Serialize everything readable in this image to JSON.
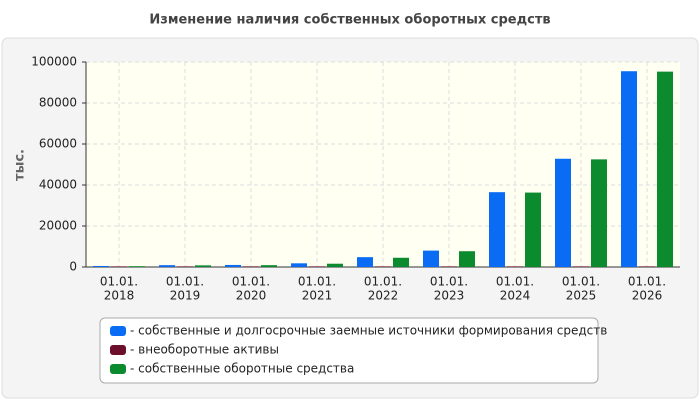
{
  "chart_data": {
    "type": "bar",
    "title": "Изменение наличия собственных оборотных средств",
    "y_label": "тыс.",
    "categories": [
      [
        "01.01.",
        "2018"
      ],
      [
        "01.01.",
        "2019"
      ],
      [
        "01.01.",
        "2020"
      ],
      [
        "01.01.",
        "2021"
      ],
      [
        "01.01.",
        "2022"
      ],
      [
        "01.01.",
        "2023"
      ],
      [
        "01.01.",
        "2024"
      ],
      [
        "01.01.",
        "2025"
      ],
      [
        "01.01.",
        "2026"
      ]
    ],
    "series": [
      {
        "name": "- собственные и долгосрочные заемные источники формирования средств",
        "color": "#0a6cf5",
        "values": [
          500,
          900,
          1000,
          1800,
          4800,
          8000,
          36500,
          52800,
          95500
        ]
      },
      {
        "name": "- внеоборотные активы",
        "color": "#6b0f2a",
        "values": [
          300,
          300,
          300,
          300,
          300,
          300,
          300,
          300,
          300
        ]
      },
      {
        "name": "- собственные оборотные средства",
        "color": "#0b8a2e",
        "values": [
          400,
          800,
          900,
          1600,
          4500,
          7700,
          36300,
          52500,
          95300
        ]
      }
    ],
    "ylim": [
      0,
      100000
    ],
    "yticks": [
      0,
      20000,
      40000,
      60000,
      80000,
      100000
    ],
    "grid": true
  }
}
